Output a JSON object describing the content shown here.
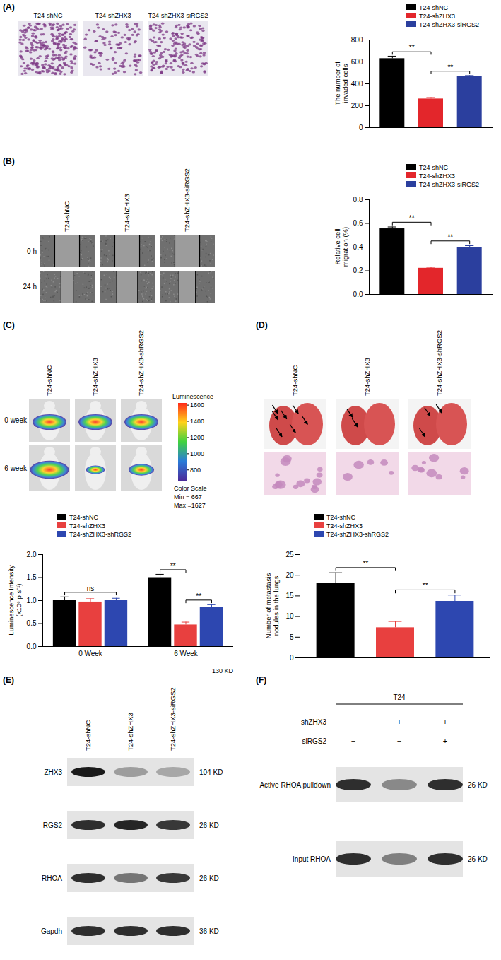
{
  "chart_data": [
    {
      "type": "bar",
      "categories": [
        "T24-shNC",
        "T24-shZHX3",
        "T24-shZHX3-siRGS2"
      ],
      "values": [
        630,
        262,
        465
      ],
      "errors": [
        22,
        12,
        10
      ],
      "colors": [
        "#000000",
        "#e3262b",
        "#2b3f9e"
      ],
      "ylabel": "The number of invaded cells",
      "ylim": [
        0,
        800
      ],
      "yticks": [
        0,
        200,
        400,
        600,
        800
      ],
      "legend": "top-right",
      "tick_labels": "y",
      "annotations": [
        {
          "text": "**",
          "from": "T24-shNC",
          "to": "T24-shZHX3"
        },
        {
          "text": "**",
          "from": "T24-shZHX3",
          "to": "T24-shZHX3-siRGS2"
        }
      ]
    },
    {
      "type": "bar",
      "categories": [
        "T24-shNC",
        "T24-shZHX3",
        "T24-shZHX3-siRGS2"
      ],
      "values": [
        0.555,
        0.222,
        0.4
      ],
      "errors": [
        0.015,
        0.008,
        0.012
      ],
      "colors": [
        "#000000",
        "#e3262b",
        "#2b3f9e"
      ],
      "ylabel": "Relative cell migration (%)",
      "ylim": [
        0,
        0.8
      ],
      "yticks": [
        {
          "value": 0,
          "label": "0.0"
        },
        {
          "value": 0.2,
          "label": "0.2"
        },
        {
          "value": 0.4,
          "label": "0.4"
        },
        {
          "value": 0.6,
          "label": "0.6"
        },
        {
          "value": 0.8,
          "label": "0.8"
        }
      ],
      "legend": "top-right",
      "tick_labels": "y",
      "annotations": [
        {
          "text": "**",
          "from": "T24-shNC",
          "to": "T24-shZHX3"
        },
        {
          "text": "**",
          "from": "T24-shZHX3",
          "to": "T24-shZHX3-siRGS2"
        }
      ]
    },
    {
      "type": "bar",
      "categories": [
        "0 Week",
        "6 Week"
      ],
      "series": [
        {
          "name": "T24-shNC",
          "color": "#000000",
          "values": [
            1.0,
            1.5
          ],
          "errors": [
            0.08,
            0.07
          ]
        },
        {
          "name": "T24-shZHX3",
          "color": "#e8403f",
          "values": [
            0.97,
            0.47
          ],
          "errors": [
            0.07,
            0.06
          ]
        },
        {
          "name": "T24-shZHX3-shRGS2",
          "color": "#2d47b0",
          "values": [
            1.0,
            0.85
          ],
          "errors": [
            0.05,
            0.06
          ]
        }
      ],
      "ylabel": "Luminescence Intensity (x10⁶ p s⁻¹)",
      "ylim": [
        0,
        2.0
      ],
      "yticks": [
        {
          "value": 0,
          "label": "0.0"
        },
        {
          "value": 0.5,
          "label": "0.5"
        },
        {
          "value": 1.0,
          "label": "1.0"
        },
        {
          "value": 1.5,
          "label": "1.5"
        },
        {
          "value": 2.0,
          "label": "2.0"
        }
      ],
      "legend": "top-left",
      "tick_labels": true,
      "annotations": [
        {
          "text": "ns",
          "category": "0 Week",
          "from": "T24-shNC",
          "to": "T24-shZHX3-shRGS2"
        },
        {
          "text": "**",
          "category": "6 Week",
          "from": "T24-shNC",
          "to": "T24-shZHX3"
        },
        {
          "text": "**",
          "category": "6 Week",
          "from": "T24-shZHX3",
          "to": "T24-shZHX3-shRGS2"
        }
      ]
    },
    {
      "type": "bar",
      "categories": [
        "T24-shNC",
        "T24-shZHX3",
        "T24-shZHX3-shRGS2"
      ],
      "values": [
        18,
        7.3,
        13.7
      ],
      "errors": [
        2.6,
        1.5,
        1.5
      ],
      "colors": [
        "#000000",
        "#e8403f",
        "#2d47b0"
      ],
      "ylabel": "Number of metastasis nodules in the lungs",
      "ylim": [
        0,
        25
      ],
      "yticks": [
        0,
        5,
        10,
        15,
        20,
        25
      ],
      "legend": "top-left",
      "tick_labels": "y",
      "annotations": [
        {
          "text": "**",
          "from": "T24-shNC",
          "to": "T24-shZHX3"
        },
        {
          "text": "**",
          "from": "T24-shZHX3",
          "to": "T24-shZHX3-shRGS2"
        }
      ]
    }
  ],
  "panels": {
    "A": {
      "label": "(A)",
      "columns": [
        "T24-shNC",
        "T24-shZHX3",
        "T24-shZHX3-siRGS2"
      ]
    },
    "B": {
      "label": "(B)",
      "columns": [
        "T24-shNC",
        "T24-shZHX3",
        "T24-shZHX3-siRGS2"
      ],
      "rows": [
        "0 h",
        "24 h"
      ]
    },
    "C": {
      "label": "(C)",
      "columns": [
        "T24-shNC",
        "T24-shZHX3",
        "T24-shZHX3-shRGS2"
      ],
      "rows": [
        "0 week",
        "6 week"
      ],
      "colorbar": {
        "label": "Luminescence",
        "range": [
          667,
          1627
        ],
        "ticks": [
          800,
          1000,
          1200,
          1400,
          1600
        ],
        "texts": [
          "Color Scale",
          "Min = 667",
          "Max =1627"
        ]
      }
    },
    "D": {
      "label": "(D)",
      "columns": [
        "T24-shNC",
        "T24-shZHX3",
        "T24-shZHX3-shRGS2"
      ]
    },
    "E": {
      "label": "(E)",
      "columns": [
        "T24-shNC",
        "T24-shZHX3",
        "T24-shZHX3-siRGS2"
      ],
      "blots": [
        {
          "name": "ZHX3",
          "size": "104 KD"
        },
        {
          "name": "RGS2",
          "size": "26 KD"
        },
        {
          "name": "RHOA",
          "size": "26 KD"
        },
        {
          "name": "Gapdh",
          "size": "36 KD"
        }
      ]
    },
    "F": {
      "label": "(F)",
      "cell_line": "T24",
      "conditions": [
        {
          "name": "shZHX3",
          "lanes": [
            "−",
            "+",
            "+"
          ]
        },
        {
          "name": "siRGS2",
          "lanes": [
            "−",
            "−",
            "+"
          ]
        }
      ],
      "blots": [
        {
          "name": "Active RHOA pulldown",
          "size": "26 KD"
        },
        {
          "name": "Input RHOA",
          "size": "26 KD"
        }
      ]
    },
    "stray_text": "130 KD"
  }
}
